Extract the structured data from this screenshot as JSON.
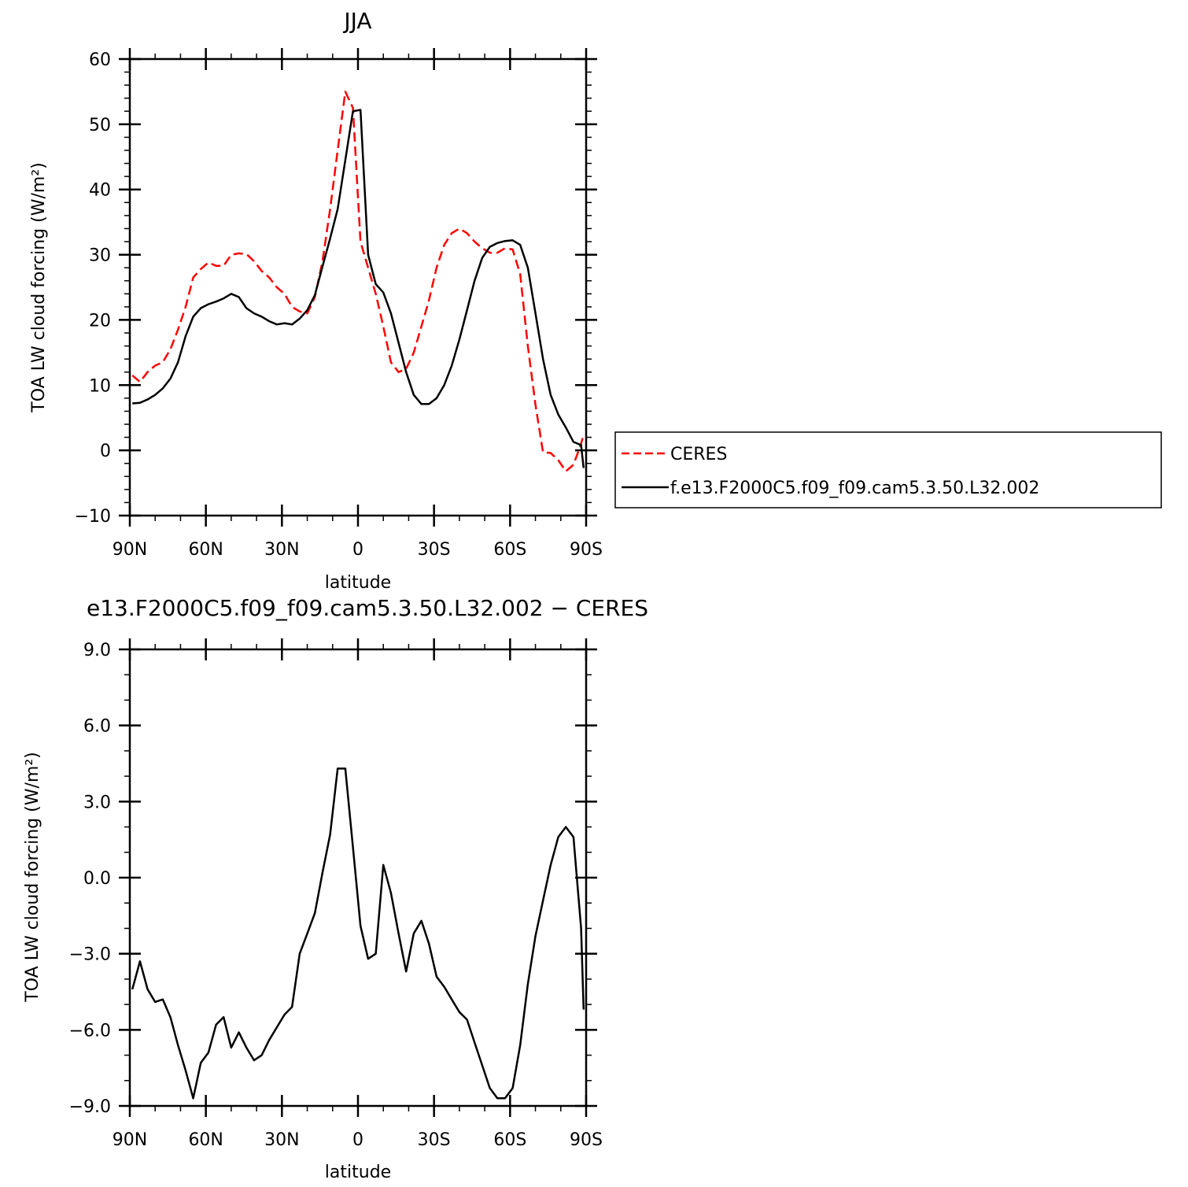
{
  "chart_data": [
    {
      "type": "line",
      "title": "JJA",
      "xlabel": "latitude",
      "ylabel": "TOA LW cloud forcing (W/m²)",
      "xlim": [
        90,
        -90
      ],
      "ylim": [
        -10,
        60
      ],
      "xticks": [
        90,
        60,
        30,
        0,
        -30,
        -60,
        -90
      ],
      "xtick_labels": [
        "90N",
        "60N",
        "30N",
        "0",
        "30S",
        "60S",
        "90S"
      ],
      "yticks": [
        -10,
        0,
        10,
        20,
        30,
        40,
        50,
        60
      ],
      "ytick_labels": [
        "−10",
        "0",
        "10",
        "20",
        "30",
        "40",
        "50",
        "60"
      ],
      "legend_position": "right",
      "series": [
        {
          "name": "CERES",
          "color": "#ff0000",
          "style": "dashed",
          "x": [
            89,
            86,
            83,
            80,
            77,
            74,
            71,
            68,
            65,
            62,
            59,
            56,
            53,
            50,
            47,
            44,
            41,
            38,
            35,
            32,
            29,
            26,
            23,
            20,
            17,
            14,
            11,
            8,
            5,
            2,
            -1,
            -4,
            -7,
            -10,
            -13,
            -16,
            -19,
            -22,
            -25,
            -28,
            -31,
            -34,
            -37,
            -40,
            -43,
            -46,
            -49,
            -52,
            -55,
            -58,
            -61,
            -64,
            -67,
            -70,
            -73,
            -76,
            -79,
            -82,
            -85,
            -88,
            -89
          ],
          "y": [
            11.5,
            10.5,
            12.0,
            13.0,
            13.5,
            15.5,
            18.5,
            22.0,
            26.5,
            27.8,
            28.8,
            28.3,
            28.3,
            30.0,
            30.2,
            30.1,
            29.0,
            27.5,
            26.5,
            25.0,
            24.0,
            22.0,
            21.3,
            21.0,
            23.5,
            29.0,
            37.0,
            46.0,
            55.0,
            52.5,
            32.0,
            28.0,
            24.0,
            19.0,
            13.5,
            12.0,
            12.5,
            15.0,
            19.0,
            23.0,
            28.0,
            31.5,
            33.3,
            34.0,
            33.3,
            32.0,
            31.0,
            30.3,
            30.3,
            31.0,
            30.8,
            27.0,
            16.0,
            7.0,
            -0.3,
            -0.4,
            -1.5,
            -3.2,
            -2.2,
            1.0,
            2.5
          ]
        },
        {
          "name": "f.e13.F2000C5.f09_f09.cam5.3.50.L32.002",
          "color": "#000000",
          "style": "solid",
          "x": [
            89,
            86,
            83,
            80,
            77,
            74,
            71,
            68,
            65,
            62,
            59,
            56,
            53,
            50,
            47,
            44,
            41,
            38,
            35,
            32,
            29,
            26,
            23,
            20,
            17,
            14,
            11,
            8,
            5,
            2,
            -1,
            -4,
            -7,
            -10,
            -13,
            -16,
            -19,
            -22,
            -25,
            -28,
            -31,
            -34,
            -37,
            -40,
            -43,
            -46,
            -49,
            -52,
            -55,
            -58,
            -61,
            -64,
            -67,
            -70,
            -73,
            -76,
            -79,
            -82,
            -85,
            -88,
            -89
          ],
          "y": [
            7.2,
            7.3,
            7.8,
            8.5,
            9.5,
            11.0,
            13.5,
            17.5,
            20.5,
            21.8,
            22.4,
            22.8,
            23.3,
            24.0,
            23.5,
            21.8,
            21.0,
            20.5,
            19.8,
            19.3,
            19.5,
            19.3,
            20.2,
            21.5,
            23.8,
            28.2,
            32.5,
            37.0,
            44.5,
            52.0,
            52.2,
            30.0,
            25.5,
            24.2,
            21.0,
            16.5,
            12.0,
            8.5,
            7.1,
            7.1,
            8.0,
            10.0,
            13.0,
            17.0,
            21.5,
            26.0,
            29.5,
            31.2,
            31.8,
            32.1,
            32.2,
            31.5,
            28.0,
            21.0,
            14.0,
            8.5,
            5.5,
            3.5,
            1.3,
            0.8,
            -2.7
          ]
        }
      ]
    },
    {
      "type": "line",
      "title": "e13.F2000C5.f09_f09.cam5.3.50.L32.002 − CERES",
      "xlabel": "latitude",
      "ylabel": "TOA LW cloud forcing (W/m²)",
      "xlim": [
        90,
        -90
      ],
      "ylim": [
        -9.0,
        9.0
      ],
      "xticks": [
        90,
        60,
        30,
        0,
        -30,
        -60,
        -90
      ],
      "xtick_labels": [
        "90N",
        "60N",
        "30N",
        "0",
        "30S",
        "60S",
        "90S"
      ],
      "yticks": [
        -9.0,
        -6.0,
        -3.0,
        0.0,
        3.0,
        6.0,
        9.0
      ],
      "ytick_labels": [
        "−9.0",
        "−6.0",
        "−3.0",
        "0.0",
        "3.0",
        "6.0",
        "9.0"
      ],
      "series": [
        {
          "color": "#000000",
          "style": "solid",
          "x": [
            89,
            86,
            83,
            80,
            77,
            74,
            71,
            68,
            65,
            62,
            59,
            56,
            53,
            50,
            47,
            44,
            41,
            38,
            35,
            32,
            29,
            26,
            23,
            20,
            17,
            14,
            11,
            8,
            5,
            2,
            -1,
            -4,
            -7,
            -10,
            -13,
            -16,
            -19,
            -22,
            -25,
            -28,
            -31,
            -34,
            -37,
            -40,
            -43,
            -46,
            -49,
            -52,
            -55,
            -58,
            -61,
            -64,
            -67,
            -70,
            -73,
            -76,
            -79,
            -82,
            -85,
            -88,
            -89
          ],
          "y": [
            -4.4,
            -3.3,
            -4.4,
            -4.9,
            -4.8,
            -5.5,
            -6.6,
            -7.6,
            -8.7,
            -7.3,
            -6.9,
            -5.8,
            -5.5,
            -6.7,
            -6.1,
            -6.7,
            -7.2,
            -7.0,
            -6.4,
            -5.9,
            -5.4,
            -5.1,
            -3.0,
            -2.2,
            -1.4,
            0.2,
            1.7,
            4.3,
            4.3,
            1.2,
            -1.9,
            -3.2,
            -3.0,
            0.5,
            -0.6,
            -2.2,
            -3.7,
            -2.2,
            -1.7,
            -2.6,
            -3.9,
            -4.3,
            -4.8,
            -5.3,
            -5.6,
            -6.5,
            -7.4,
            -8.3,
            -8.7,
            -8.7,
            -8.3,
            -6.6,
            -4.2,
            -2.3,
            -0.9,
            0.5,
            1.6,
            2.0,
            1.6,
            -2.0,
            -5.2
          ]
        }
      ]
    }
  ]
}
